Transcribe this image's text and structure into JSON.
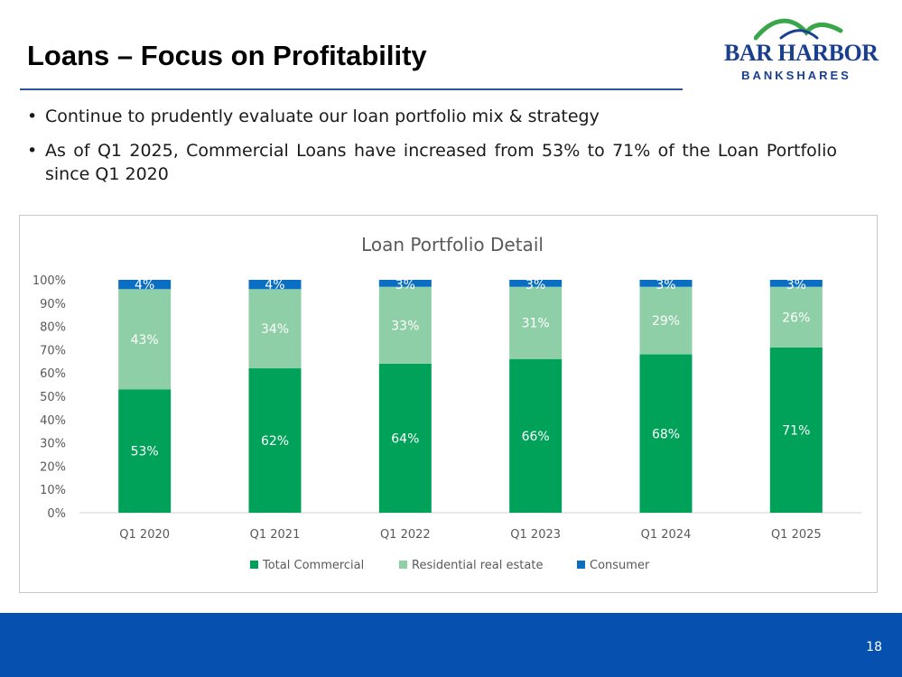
{
  "slide": {
    "title": "Loans – Focus on Profitability",
    "bullets": [
      "Continue to prudently evaluate our loan portfolio mix & strategy",
      "As of Q1 2025, Commercial Loans have increased from 53% to 71% of the Loan Portfolio since Q1 2020"
    ],
    "page_number": "18"
  },
  "logo": {
    "line1": "BAR HARBOR",
    "line2": "BANKSHARES",
    "colors": {
      "text": "#1a3f8f",
      "arc_green": "#3aa64a",
      "arc_blue": "#1a3f8f"
    }
  },
  "colors": {
    "footer": "#0650b0",
    "rule": "#2e5597",
    "commercial": "#00a25a",
    "residential": "#8fcfa8",
    "consumer": "#0a6fc2"
  },
  "chart_data": {
    "type": "bar",
    "stacked": true,
    "title": "Loan Portfolio Detail",
    "categories": [
      "Q1 2020",
      "Q1 2021",
      "Q1 2022",
      "Q1 2023",
      "Q1 2024",
      "Q1 2025"
    ],
    "series": [
      {
        "name": "Total Commercial",
        "values": [
          53,
          62,
          64,
          66,
          68,
          71
        ],
        "labels": [
          "53%",
          "62%",
          "64%",
          "66%",
          "68%",
          "71%"
        ],
        "color": "#00a25a"
      },
      {
        "name": "Residential real estate",
        "values": [
          43,
          34,
          33,
          31,
          29,
          26
        ],
        "labels": [
          "43%",
          "34%",
          "33%",
          "31%",
          "29%",
          "26%"
        ],
        "color": "#8fcfa8"
      },
      {
        "name": "Consumer",
        "values": [
          4,
          4,
          3,
          3,
          3,
          3
        ],
        "labels": [
          "4%",
          "4%",
          "3%",
          "3%",
          "3%",
          "3%"
        ],
        "color": "#0a6fc2"
      }
    ],
    "y_ticks": [
      "0%",
      "10%",
      "20%",
      "30%",
      "40%",
      "50%",
      "60%",
      "70%",
      "80%",
      "90%",
      "100%"
    ],
    "ylim": [
      0,
      100
    ],
    "xlabel": "",
    "ylabel": "",
    "legend_position": "bottom",
    "grid": false
  }
}
